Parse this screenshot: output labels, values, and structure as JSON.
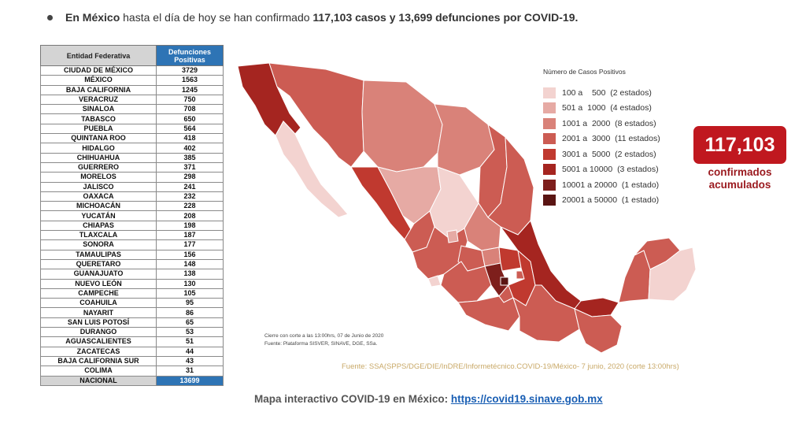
{
  "headline": {
    "prefix_bold": "En México",
    "middle": " hasta el día de hoy se han confirmado ",
    "cases_bold": "117,103 casos y 13,699 defunciones por COVID-19."
  },
  "table": {
    "col1": "Entidad Federativa",
    "col2": "Defunciones Positivas",
    "rows": [
      {
        "state": "CIUDAD DE MÉXICO",
        "value": "3729"
      },
      {
        "state": "MÉXICO",
        "value": "1563"
      },
      {
        "state": "BAJA CALIFORNIA",
        "value": "1245"
      },
      {
        "state": "VERACRUZ",
        "value": "750"
      },
      {
        "state": "SINALOA",
        "value": "708"
      },
      {
        "state": "TABASCO",
        "value": "650"
      },
      {
        "state": "PUEBLA",
        "value": "564"
      },
      {
        "state": "QUINTANA ROO",
        "value": "418"
      },
      {
        "state": "HIDALGO",
        "value": "402"
      },
      {
        "state": "CHIHUAHUA",
        "value": "385"
      },
      {
        "state": "GUERRERO",
        "value": "371"
      },
      {
        "state": "MORELOS",
        "value": "298"
      },
      {
        "state": "JALISCO",
        "value": "241"
      },
      {
        "state": "OAXACA",
        "value": "232"
      },
      {
        "state": "MICHOACÁN",
        "value": "228"
      },
      {
        "state": "YUCATÁN",
        "value": "208"
      },
      {
        "state": "CHIAPAS",
        "value": "198"
      },
      {
        "state": "TLAXCALA",
        "value": "187"
      },
      {
        "state": "SONORA",
        "value": "177"
      },
      {
        "state": "TAMAULIPAS",
        "value": "156"
      },
      {
        "state": "QUERETARO",
        "value": "148"
      },
      {
        "state": "GUANAJUATO",
        "value": "138"
      },
      {
        "state": "NUEVO LEÓN",
        "value": "130"
      },
      {
        "state": "CAMPECHE",
        "value": "105"
      },
      {
        "state": "COAHUILA",
        "value": "95"
      },
      {
        "state": "NAYARIT",
        "value": "86"
      },
      {
        "state": "SAN LUIS POTOSÍ",
        "value": "65"
      },
      {
        "state": "DURANGO",
        "value": "53"
      },
      {
        "state": "AGUASCALIENTES",
        "value": "51"
      },
      {
        "state": "ZACATECAS",
        "value": "44"
      },
      {
        "state": "BAJA CALIFORNIA SUR",
        "value": "43"
      },
      {
        "state": "COLIMA",
        "value": "31"
      }
    ],
    "total_label": "NACIONAL",
    "total_value": "13699"
  },
  "legend": {
    "title": "Número de Casos Positivos",
    "items": [
      {
        "label": "100 a    500  (2 estados)",
        "color": "#f3d3d0"
      },
      {
        "label": "501 a  1000  (4 estados)",
        "color": "#e6aaa4"
      },
      {
        "label": "1001 a  2000  (8 estados)",
        "color": "#d98279"
      },
      {
        "label": "2001 a  3000  (11 estados)",
        "color": "#cc5c53"
      },
      {
        "label": "3001 a  5000  (2 estados)",
        "color": "#c0392f"
      },
      {
        "label": "5001 a 10000  (3 estados)",
        "color": "#a52520"
      },
      {
        "label": "10001 a 20000  (1 estado)",
        "color": "#7e1f1c"
      },
      {
        "label": "20001 a 50000  (1 estado)",
        "color": "#5a1513"
      }
    ]
  },
  "map_notes": {
    "line1": "Cierre con corte a las 13:00hrs, 07 de Junio de 2020",
    "line2": "Fuente: Plataforma SISVER, SINAVE, DGE, SSa."
  },
  "source": "Fuente: SSA(SPPS/DGE/DIE/InDRE/Informetécnico.COVID-19/México- 7 junio, 2020 (corte 13:00hrs)",
  "counter": {
    "value": "117,103",
    "label": "confirmados acumulados"
  },
  "footer": {
    "text": "Mapa interactivo COVID-19 en México: ",
    "link": "https://covid19.sinave.gob.mx"
  },
  "colors": {
    "table_header_blue": "#2e74b5",
    "counter_red": "#c0181f",
    "link_blue": "#1a5fb4",
    "source_gold": "#c9a968"
  }
}
